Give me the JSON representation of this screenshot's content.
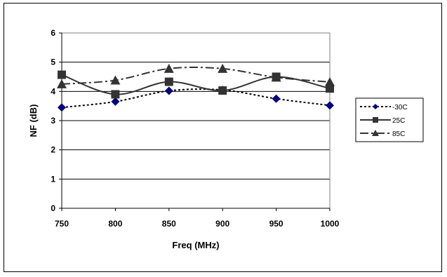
{
  "chart_data": {
    "type": "line",
    "title": "",
    "xlabel": "Freq (MHz)",
    "ylabel": "NF (dB)",
    "x": [
      750,
      800,
      850,
      900,
      950,
      1000
    ],
    "xticks": [
      "750",
      "800",
      "850",
      "900",
      "950",
      "1000"
    ],
    "yticks": [
      "0",
      "1",
      "2",
      "3",
      "4",
      "5",
      "6"
    ],
    "ylim": [
      0,
      6
    ],
    "grid": "horizontal",
    "legend": "right",
    "series": [
      {
        "name": "-30C",
        "values": [
          3.45,
          3.65,
          4.02,
          4.05,
          3.75,
          3.52
        ],
        "color": "#000080",
        "marker": "diamond",
        "dash": "dotted"
      },
      {
        "name": "25C",
        "values": [
          4.57,
          3.9,
          4.33,
          4.03,
          4.5,
          4.1
        ],
        "color": "#333333",
        "marker": "square",
        "dash": "solid"
      },
      {
        "name": "85C",
        "values": [
          4.25,
          4.38,
          4.78,
          4.78,
          4.48,
          4.32
        ],
        "color": "#333333",
        "marker": "triangle",
        "dash": "dashdot"
      }
    ]
  }
}
